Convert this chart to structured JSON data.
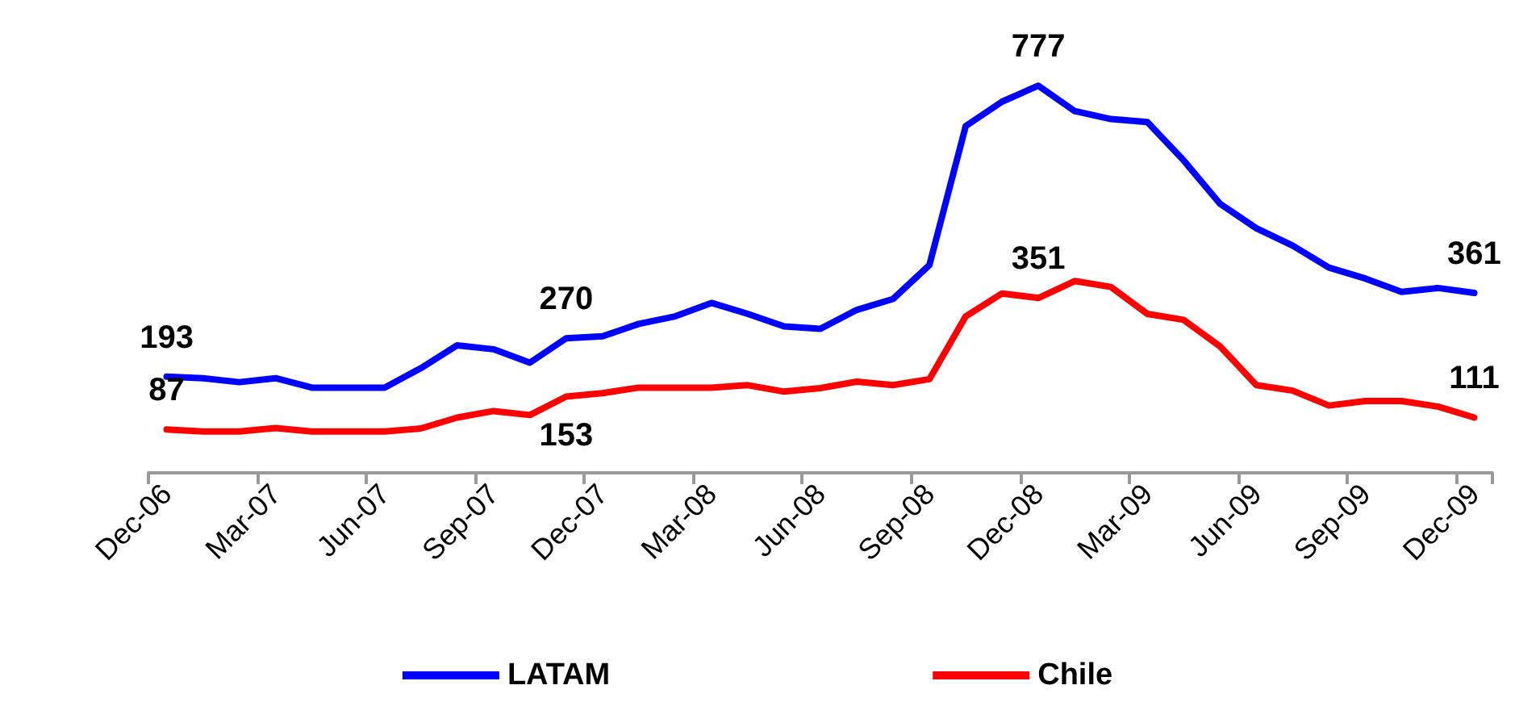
{
  "chart_data": {
    "type": "line",
    "categories": [
      "Dec-06",
      null,
      null,
      "Mar-07",
      null,
      null,
      "Jun-07",
      null,
      null,
      "Sep-07",
      null,
      null,
      "Dec-07",
      null,
      null,
      "Mar-08",
      null,
      null,
      "Jun-08",
      null,
      null,
      "Sep-08",
      null,
      null,
      "Dec-08",
      null,
      null,
      "Mar-09",
      null,
      null,
      "Jun-09",
      null,
      null,
      "Sep-09",
      null,
      null,
      "Dec-09"
    ],
    "series": [
      {
        "name": "LATAM",
        "color": "#0000ff",
        "values": [
          193,
          190,
          182,
          190,
          171,
          171,
          171,
          210,
          256,
          248,
          221,
          270,
          274,
          299,
          314,
          341,
          319,
          294,
          289,
          327,
          349,
          417,
          696,
          745,
          777,
          726,
          710,
          704,
          627,
          540,
          491,
          456,
          412,
          390,
          363,
          371,
          361
        ],
        "value_labels": [
          "193",
          null,
          null,
          null,
          null,
          null,
          null,
          null,
          null,
          null,
          null,
          "270",
          null,
          null,
          null,
          null,
          null,
          null,
          null,
          null,
          null,
          null,
          null,
          null,
          "777",
          null,
          null,
          null,
          null,
          null,
          null,
          null,
          null,
          null,
          null,
          null,
          "361"
        ]
      },
      {
        "name": "Chile",
        "color": "#ff0000",
        "values": [
          87,
          83,
          83,
          90,
          83,
          83,
          83,
          89,
          111,
          124,
          116,
          153,
          160,
          171,
          171,
          171,
          176,
          163,
          170,
          183,
          176,
          188,
          314,
          360,
          351,
          385,
          373,
          319,
          307,
          254,
          176,
          165,
          135,
          144,
          144,
          133,
          111
        ],
        "value_labels": [
          "87",
          null,
          null,
          null,
          null,
          null,
          null,
          null,
          null,
          null,
          null,
          "153",
          null,
          null,
          null,
          null,
          null,
          null,
          null,
          null,
          null,
          null,
          null,
          null,
          "351",
          null,
          null,
          null,
          null,
          null,
          null,
          null,
          null,
          null,
          null,
          null,
          "111"
        ]
      }
    ],
    "legend": "bottom",
    "grid": false,
    "marker": "none",
    "line_style": "solid"
  }
}
